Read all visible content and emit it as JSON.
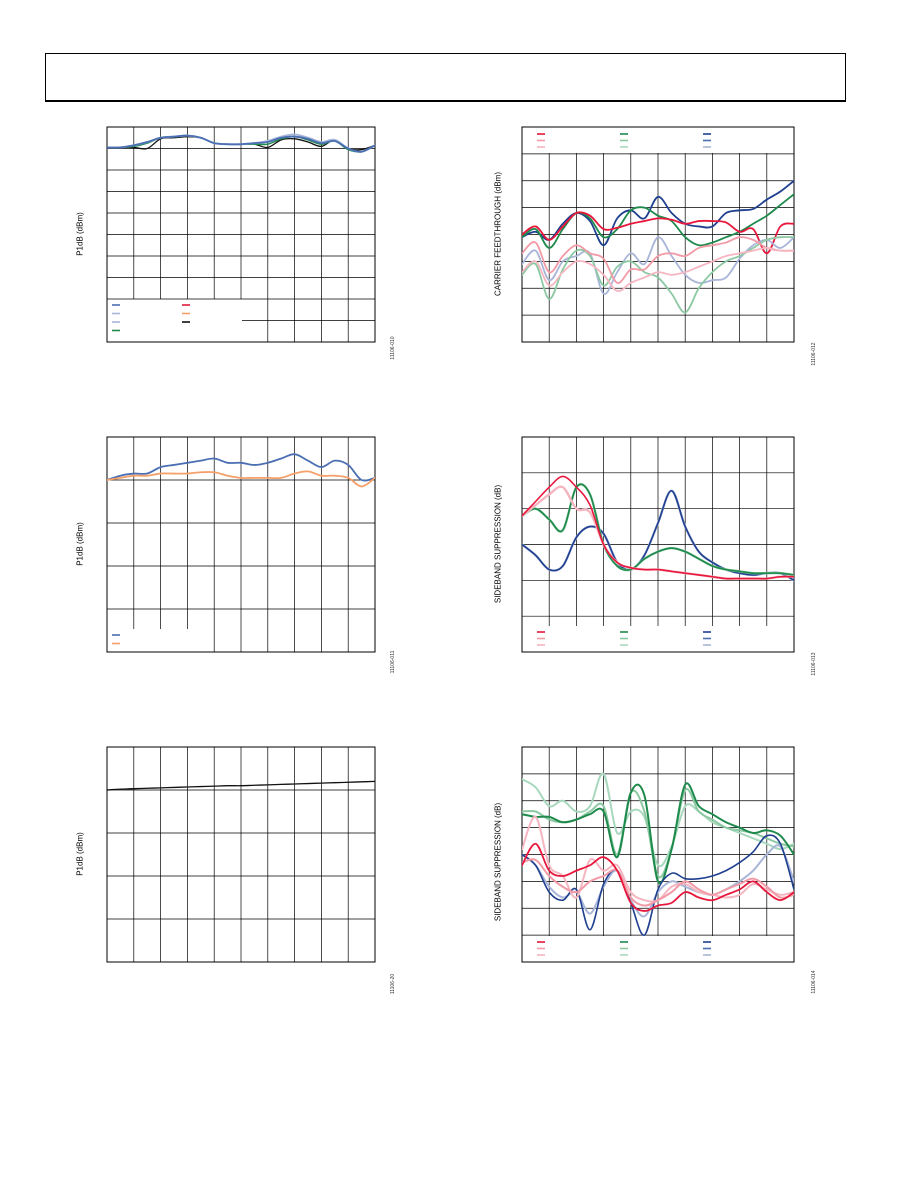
{
  "header": {
    "title": ""
  },
  "colors": {
    "blue_dark": "#1f3f8f",
    "blue_mid": "#4a6fb3",
    "blue_light": "#a9b6d9",
    "red": "#e8173c",
    "red_light": "#f29aa6",
    "pink": "#f5b6c1",
    "green": "#1e8a4c",
    "green_light": "#8cc9a3",
    "green_pale": "#a8d8bd",
    "orange": "#f5a06a",
    "black": "#111111",
    "grid": "#000000"
  },
  "chart_data": [
    {
      "id": "fig-10",
      "type": "line",
      "ylabel": "P1dB (dBm)",
      "figure_id": "11106-010",
      "grid_cols": 10,
      "grid_rows": 10,
      "legend_placement": "bottom-left",
      "legend_colors": [
        "blue_mid",
        "blue_light",
        "blue_light",
        "green",
        "red",
        "orange",
        "black"
      ],
      "x": [
        0,
        0.5,
        1,
        1.5,
        2,
        2.5,
        3,
        3.5,
        4,
        4.5,
        5,
        5.5,
        6,
        6.5,
        7,
        7.5,
        8,
        8.5,
        9,
        9.5,
        10
      ],
      "series": [
        {
          "color": "black",
          "width": 1.3,
          "values": [
            9.05,
            9.05,
            9.05,
            9.0,
            9.45,
            9.5,
            9.55,
            9.5,
            9.25,
            9.2,
            9.2,
            9.2,
            9.05,
            9.4,
            9.45,
            9.3,
            9.1,
            9.4,
            9.0,
            8.95,
            9.15
          ]
        },
        {
          "color": "green",
          "width": 1.5,
          "values": [
            9.05,
            9.05,
            9.1,
            9.25,
            9.5,
            9.55,
            9.6,
            9.5,
            9.25,
            9.2,
            9.2,
            9.2,
            9.2,
            9.45,
            9.55,
            9.4,
            9.2,
            9.35,
            8.95,
            8.85,
            9.15
          ]
        },
        {
          "color": "blue_light",
          "width": 2.0,
          "values": [
            9.05,
            9.05,
            9.15,
            9.3,
            9.5,
            9.55,
            9.6,
            9.5,
            9.25,
            9.2,
            9.2,
            9.25,
            9.35,
            9.55,
            9.65,
            9.5,
            9.3,
            9.4,
            9.0,
            8.85,
            9.15
          ]
        },
        {
          "color": "blue_mid",
          "width": 1.8,
          "values": [
            9.05,
            9.05,
            9.15,
            9.3,
            9.5,
            9.55,
            9.6,
            9.5,
            9.25,
            9.2,
            9.2,
            9.25,
            9.3,
            9.5,
            9.55,
            9.45,
            9.25,
            9.35,
            9.0,
            8.85,
            9.15
          ]
        }
      ],
      "xlim": [
        0,
        10
      ],
      "ylim": [
        0,
        10
      ]
    },
    {
      "id": "fig-11",
      "type": "line",
      "ylabel": "P1dB (dBm)",
      "figure_id": "11106-011",
      "grid_cols": 10,
      "grid_rows": 5,
      "legend_placement": "bottom-left",
      "legend_colors": [
        "blue_mid",
        "orange"
      ],
      "x": [
        0,
        0.5,
        1,
        1.5,
        2,
        2.5,
        3,
        3.5,
        4,
        4.5,
        5,
        5.5,
        6,
        6.5,
        7,
        7.5,
        8,
        8.5,
        9,
        9.5,
        10
      ],
      "series": [
        {
          "color": "blue_mid",
          "width": 1.8,
          "values": [
            4.0,
            4.1,
            4.15,
            4.15,
            4.3,
            4.35,
            4.4,
            4.45,
            4.5,
            4.4,
            4.4,
            4.35,
            4.4,
            4.5,
            4.6,
            4.45,
            4.3,
            4.45,
            4.35,
            4.0,
            4.05
          ]
        },
        {
          "color": "orange",
          "width": 1.8,
          "values": [
            4.0,
            4.05,
            4.1,
            4.1,
            4.15,
            4.15,
            4.15,
            4.18,
            4.18,
            4.1,
            4.05,
            4.05,
            4.05,
            4.05,
            4.15,
            4.2,
            4.1,
            4.1,
            4.05,
            3.85,
            4.05
          ]
        }
      ],
      "xlim": [
        0,
        10
      ],
      "ylim": [
        0,
        5
      ]
    },
    {
      "id": "fig-20",
      "type": "line",
      "ylabel": "P1dB (dBm)",
      "figure_id": "11106-20",
      "grid_cols": 10,
      "grid_rows": 5,
      "legend_placement": "none",
      "legend_colors": [],
      "x": [
        0,
        0.5,
        1,
        1.5,
        2,
        2.5,
        3,
        3.5,
        4,
        4.5,
        5,
        5.5,
        6,
        6.5,
        7,
        7.5,
        8,
        8.5,
        9,
        9.5,
        10
      ],
      "series": [
        {
          "color": "black",
          "width": 1.3,
          "values": [
            4.0,
            4.02,
            4.03,
            4.04,
            4.05,
            4.06,
            4.07,
            4.08,
            4.09,
            4.1,
            4.1,
            4.11,
            4.12,
            4.13,
            4.14,
            4.15,
            4.16,
            4.17,
            4.18,
            4.19,
            4.2
          ]
        }
      ],
      "xlim": [
        0,
        10
      ],
      "ylim": [
        0,
        5
      ]
    },
    {
      "id": "fig-12",
      "type": "line",
      "ylabel": "CARRIER FEEDTHROUGH (dBm)",
      "figure_id": "11106-012",
      "grid_cols": 10,
      "grid_rows": 8,
      "legend_placement": "top",
      "legend_colors": [
        "red",
        "red_light",
        "pink",
        "green",
        "green_light",
        "green_pale",
        "blue_dark",
        "blue_mid",
        "blue_light"
      ],
      "x": [
        0,
        0.5,
        1,
        1.5,
        2,
        2.5,
        3,
        3.5,
        4,
        4.5,
        5,
        5.5,
        6,
        6.5,
        7,
        7.5,
        8,
        8.5,
        9,
        9.5,
        10
      ],
      "series": [
        {
          "color": "blue_dark",
          "width": 1.8,
          "values": [
            3.9,
            4.1,
            3.8,
            4.4,
            4.8,
            4.5,
            3.6,
            4.6,
            4.9,
            4.6,
            5.4,
            4.8,
            4.4,
            4.3,
            4.3,
            4.8,
            4.9,
            4.95,
            5.3,
            5.6,
            6.0
          ]
        },
        {
          "color": "green",
          "width": 1.8,
          "values": [
            3.9,
            4.2,
            3.5,
            4.2,
            4.8,
            4.6,
            3.9,
            4.2,
            4.9,
            5.0,
            4.7,
            4.5,
            3.9,
            3.6,
            3.7,
            3.9,
            4.1,
            4.4,
            4.7,
            5.1,
            5.5
          ]
        },
        {
          "color": "red",
          "width": 1.8,
          "values": [
            4.0,
            4.3,
            3.8,
            4.3,
            4.8,
            4.7,
            4.2,
            4.25,
            4.4,
            4.5,
            4.6,
            4.55,
            4.4,
            4.5,
            4.5,
            4.45,
            4.1,
            4.2,
            3.3,
            4.3,
            4.4
          ]
        },
        {
          "color": "blue_light",
          "width": 1.8,
          "values": [
            2.9,
            3.4,
            2.3,
            3.0,
            3.2,
            3.3,
            1.8,
            2.6,
            3.3,
            2.9,
            3.9,
            3.2,
            2.5,
            2.2,
            2.3,
            2.4,
            3.1,
            3.6,
            3.8,
            3.5,
            3.9
          ]
        },
        {
          "color": "green_light",
          "width": 1.8,
          "values": [
            2.5,
            2.9,
            1.6,
            2.7,
            3.4,
            3.2,
            2.1,
            2.8,
            3.0,
            2.6,
            2.4,
            1.8,
            1.1,
            2.0,
            2.6,
            3.0,
            3.2,
            3.5,
            3.8,
            3.9,
            3.9
          ]
        },
        {
          "color": "red_light",
          "width": 1.8,
          "values": [
            3.3,
            3.7,
            2.6,
            3.2,
            3.6,
            3.3,
            3.1,
            2.2,
            2.7,
            2.7,
            3.2,
            3.3,
            3.2,
            3.5,
            3.6,
            3.7,
            3.9,
            3.8,
            3.5,
            3.4,
            3.4
          ]
        },
        {
          "color": "pink",
          "width": 1.8,
          "values": [
            2.6,
            3.0,
            2.1,
            2.6,
            3.0,
            2.9,
            2.5,
            1.9,
            2.2,
            2.4,
            2.6,
            2.5,
            2.6,
            2.8,
            3.0,
            3.2,
            3.3,
            3.4,
            3.5,
            3.4,
            3.4
          ]
        }
      ],
      "xlim": [
        0,
        10
      ],
      "ylim": [
        0,
        8
      ]
    },
    {
      "id": "fig-13",
      "type": "line",
      "ylabel": "SIDEBAND SUPPRESSION (dB)",
      "figure_id": "11106-013",
      "grid_cols": 10,
      "grid_rows": 6,
      "legend_placement": "bottom",
      "legend_colors": [
        "red",
        "red_light",
        "pink",
        "green",
        "green_light",
        "green_pale",
        "blue_dark",
        "blue_mid",
        "blue_light"
      ],
      "x": [
        0,
        0.5,
        1,
        1.5,
        2,
        2.5,
        3,
        3.5,
        4,
        4.5,
        5,
        5.5,
        6,
        6.5,
        7,
        7.5,
        8,
        8.5,
        9,
        9.5,
        10
      ],
      "series": [
        {
          "color": "blue_light",
          "width": 2.4,
          "values": [
            3.0,
            2.7,
            2.3,
            2.4,
            3.2,
            3.5,
            3.3,
            2.5,
            2.3,
            2.7,
            3.6,
            4.5,
            3.5,
            2.8,
            2.5,
            2.3,
            2.2,
            2.15,
            2.2,
            2.2,
            2.0
          ]
        },
        {
          "color": "blue_dark",
          "width": 1.6,
          "values": [
            3.0,
            2.7,
            2.3,
            2.4,
            3.2,
            3.5,
            3.3,
            2.5,
            2.3,
            2.7,
            3.6,
            4.5,
            3.5,
            2.8,
            2.5,
            2.3,
            2.2,
            2.15,
            2.2,
            2.2,
            2.0
          ]
        },
        {
          "color": "green_light",
          "width": 2.4,
          "values": [
            3.8,
            4.0,
            3.7,
            3.4,
            4.6,
            4.4,
            3.0,
            2.4,
            2.3,
            2.6,
            2.8,
            2.9,
            2.8,
            2.6,
            2.4,
            2.3,
            2.25,
            2.2,
            2.2,
            2.2,
            2.15
          ]
        },
        {
          "color": "green",
          "width": 1.6,
          "values": [
            3.8,
            4.0,
            3.7,
            3.4,
            4.6,
            4.4,
            3.0,
            2.4,
            2.3,
            2.6,
            2.8,
            2.9,
            2.8,
            2.6,
            2.4,
            2.3,
            2.25,
            2.2,
            2.2,
            2.2,
            2.15
          ]
        },
        {
          "color": "pink",
          "width": 2.4,
          "values": [
            3.8,
            4.1,
            4.4,
            4.6,
            4.0,
            3.9,
            3.0,
            2.5,
            2.35,
            2.3,
            2.3,
            2.25,
            2.2,
            2.15,
            2.1,
            2.05,
            2.05,
            2.05,
            2.05,
            2.1,
            2.1
          ]
        },
        {
          "color": "red",
          "width": 1.6,
          "values": [
            3.8,
            4.2,
            4.6,
            4.9,
            4.6,
            4.1,
            3.0,
            2.5,
            2.35,
            2.3,
            2.3,
            2.25,
            2.2,
            2.15,
            2.1,
            2.05,
            2.05,
            2.05,
            2.05,
            2.1,
            2.1
          ]
        }
      ],
      "xlim": [
        0,
        10
      ],
      "ylim": [
        0,
        6
      ]
    },
    {
      "id": "fig-14",
      "type": "line",
      "ylabel": "SIDEBAND SUPPRESSION (dB)",
      "figure_id": "11106-014",
      "grid_cols": 10,
      "grid_rows": 8,
      "legend_placement": "bottom",
      "legend_colors": [
        "red",
        "red_light",
        "pink",
        "green",
        "green_light",
        "green_pale",
        "blue_dark",
        "blue_mid",
        "blue_light"
      ],
      "x": [
        0,
        0.5,
        1,
        1.5,
        2,
        2.5,
        3,
        3.5,
        4,
        4.5,
        5,
        5.5,
        6,
        6.5,
        7,
        7.5,
        8,
        8.5,
        9,
        9.5,
        10
      ],
      "series": [
        {
          "color": "green_pale",
          "width": 2.0,
          "values": [
            6.8,
            6.5,
            5.8,
            6.0,
            5.6,
            5.8,
            7.0,
            4.8,
            5.6,
            5.4,
            3.6,
            4.3,
            5.8,
            5.6,
            5.2,
            5.0,
            4.8,
            4.6,
            4.4,
            4.2,
            4.4
          ]
        },
        {
          "color": "green_light",
          "width": 2.0,
          "values": [
            5.6,
            5.6,
            5.3,
            5.2,
            5.3,
            5.6,
            5.8,
            4.0,
            6.3,
            5.6,
            3.2,
            4.2,
            6.4,
            5.6,
            5.3,
            5.0,
            4.9,
            4.8,
            4.6,
            4.4,
            4.3
          ]
        },
        {
          "color": "green",
          "width": 2.0,
          "values": [
            5.5,
            5.4,
            5.4,
            5.2,
            5.3,
            5.5,
            5.6,
            3.9,
            6.3,
            6.2,
            3.0,
            4.2,
            6.6,
            5.8,
            5.5,
            5.2,
            5.0,
            4.8,
            4.9,
            4.7,
            4.0
          ]
        },
        {
          "color": "blue_light",
          "width": 2.0,
          "values": [
            4.0,
            3.6,
            2.8,
            2.4,
            2.6,
            1.8,
            2.8,
            3.4,
            2.3,
            1.7,
            2.6,
            3.0,
            2.8,
            2.6,
            2.5,
            2.7,
            3.0,
            3.4,
            4.0,
            4.3,
            3.0
          ]
        },
        {
          "color": "blue_dark",
          "width": 1.6,
          "values": [
            4.0,
            3.6,
            2.6,
            2.3,
            2.7,
            1.2,
            2.9,
            3.4,
            2.2,
            1.0,
            2.7,
            3.3,
            3.1,
            3.1,
            3.2,
            3.4,
            3.7,
            4.1,
            4.7,
            4.4,
            2.7
          ]
        },
        {
          "color": "pink",
          "width": 2.0,
          "values": [
            4.2,
            5.4,
            3.6,
            3.2,
            2.4,
            3.8,
            3.4,
            3.6,
            2.6,
            2.3,
            2.3,
            2.8,
            2.9,
            2.6,
            2.5,
            2.4,
            2.5,
            2.9,
            2.7,
            2.5,
            2.6
          ]
        },
        {
          "color": "red_light",
          "width": 2.0,
          "values": [
            3.7,
            3.8,
            3.2,
            2.8,
            2.6,
            3.0,
            3.2,
            3.4,
            2.4,
            2.1,
            2.3,
            2.6,
            3.0,
            2.7,
            2.5,
            2.7,
            2.9,
            3.1,
            2.8,
            2.4,
            2.5
          ]
        },
        {
          "color": "red",
          "width": 1.8,
          "values": [
            3.6,
            4.4,
            3.4,
            3.2,
            3.4,
            3.6,
            3.9,
            3.4,
            2.2,
            1.9,
            2.1,
            2.2,
            2.6,
            2.4,
            2.3,
            2.5,
            2.7,
            3.0,
            2.6,
            2.3,
            2.6
          ]
        }
      ],
      "xlim": [
        0,
        10
      ],
      "ylim": [
        0,
        8
      ]
    }
  ]
}
